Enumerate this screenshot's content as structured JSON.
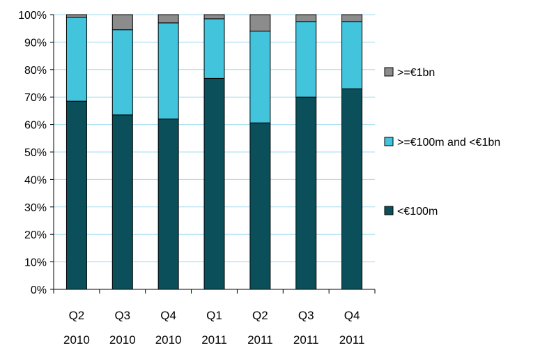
{
  "chart_data": {
    "type": "bar",
    "stacked": true,
    "percent": true,
    "categories": [
      [
        "Q2",
        "2010"
      ],
      [
        "Q3",
        "2010"
      ],
      [
        "Q4",
        "2010"
      ],
      [
        "Q1",
        "2011"
      ],
      [
        "Q2",
        "2011"
      ],
      [
        "Q3",
        "2011"
      ],
      [
        "Q4",
        "2011"
      ]
    ],
    "series": [
      {
        "name": "<€100m",
        "color": "#0b4f5a",
        "values": [
          68.5,
          63.5,
          62.0,
          76.8,
          60.6,
          70.0,
          73.0
        ]
      },
      {
        "name": ">=€100m and <€1bn",
        "color": "#41c4dc",
        "values": [
          30.5,
          31.0,
          35.0,
          21.7,
          33.4,
          27.5,
          24.5
        ]
      },
      {
        "name": ">=€1bn",
        "color": "#8c8c8c",
        "values": [
          1.0,
          5.5,
          3.0,
          1.5,
          6.0,
          2.5,
          2.5
        ]
      }
    ],
    "ylim": [
      0,
      100
    ],
    "yticks": [
      "0%",
      "10%",
      "20%",
      "30%",
      "40%",
      "50%",
      "60%",
      "70%",
      "80%",
      "90%",
      "100%"
    ],
    "grid": true,
    "legend": {
      "placement": "right",
      "order": [
        ">=€1bn",
        ">=€100m and <€1bn",
        "<€100m"
      ]
    },
    "title": "",
    "xlabel": "",
    "ylabel": ""
  }
}
